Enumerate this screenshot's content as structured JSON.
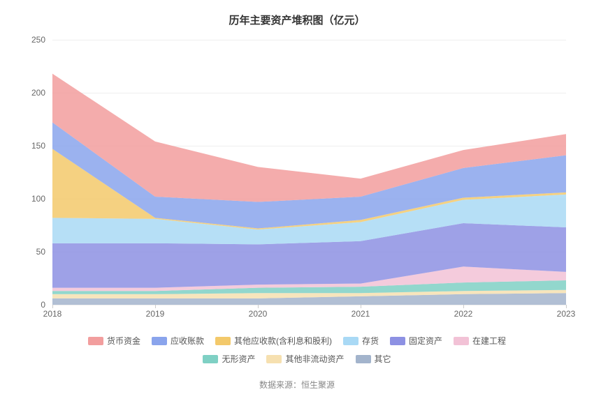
{
  "chart": {
    "type": "stacked-area",
    "title": "历年主要资产堆积图（亿元）",
    "title_fontsize": 15,
    "title_fontweight": "bold",
    "title_color": "#333333",
    "background_color": "#ffffff",
    "grid_color": "#eeeeee",
    "axis_label_color": "#666666",
    "axis_label_fontsize": 12,
    "x": {
      "categories": [
        "2018",
        "2019",
        "2020",
        "2021",
        "2022",
        "2023"
      ]
    },
    "y": {
      "min": 0,
      "max": 250,
      "tick_step": 50,
      "ticks": [
        0,
        50,
        100,
        150,
        200,
        250
      ]
    },
    "series": [
      {
        "name": "其它",
        "color": "#a3b4cc",
        "values": [
          6,
          6,
          6,
          8,
          10,
          11
        ]
      },
      {
        "name": "其他非流动资产",
        "color": "#f6e0b0",
        "values": [
          4,
          4,
          5,
          3,
          3,
          3
        ]
      },
      {
        "name": "无形资产",
        "color": "#7fd0c4",
        "values": [
          3,
          3,
          5,
          6,
          8,
          9
        ]
      },
      {
        "name": "在建工程",
        "color": "#f2c2d6",
        "values": [
          3,
          3,
          3,
          3,
          15,
          8
        ]
      },
      {
        "name": "固定资产",
        "color": "#8d91e3",
        "values": [
          42,
          42,
          38,
          40,
          41,
          42
        ]
      },
      {
        "name": "存货",
        "color": "#a9d9f5",
        "values": [
          24,
          23,
          14,
          18,
          22,
          31
        ]
      },
      {
        "name": "其他应收款(含利息和股利)",
        "color": "#f3c96b",
        "values": [
          65,
          1,
          1,
          2,
          2,
          2
        ]
      },
      {
        "name": "应收账款",
        "color": "#8aa4ec",
        "values": [
          25,
          20,
          25,
          22,
          28,
          35
        ]
      },
      {
        "name": "货币资金",
        "color": "#f29e9e",
        "values": [
          46,
          52,
          33,
          17,
          17,
          20
        ]
      }
    ],
    "series_fill_opacity": 0.85,
    "legend_order": [
      "货币资金",
      "应收账款",
      "其他应收款(含利息和股利)",
      "存货",
      "固定资产",
      "在建工程",
      "无形资产",
      "其他非流动资产",
      "其它"
    ],
    "legend_fontsize": 12,
    "legend_color": "#555555",
    "source_label": "数据来源：恒生聚源",
    "source_fontsize": 12,
    "source_color": "#888888"
  }
}
